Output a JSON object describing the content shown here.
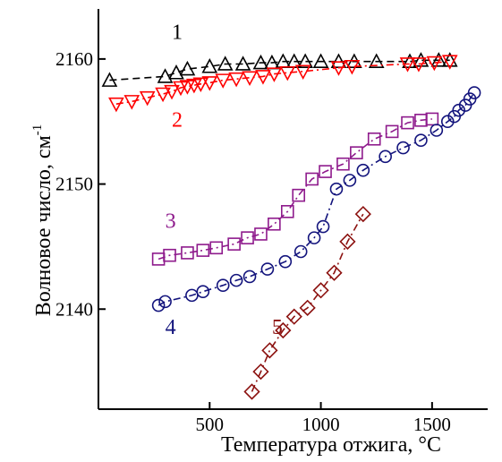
{
  "chart_data": {
    "type": "scatter",
    "xlabel": "Температура отжига, °C",
    "ylabel": "Волновое число, см",
    "ylabel_superscript": "-1",
    "xlim": [
      0,
      1750
    ],
    "ylim": [
      2132,
      2164
    ],
    "xticks": [
      500,
      1000,
      1500
    ],
    "yticks": [
      2140,
      2150,
      2160
    ],
    "grid": false,
    "series": [
      {
        "name": "1",
        "marker": "triangle-up",
        "color": "#000000",
        "linestyle": "dashed",
        "x": [
          50,
          300,
          350,
          400,
          500,
          570,
          650,
          730,
          780,
          830,
          880,
          930,
          1000,
          1080,
          1150,
          1250,
          1400,
          1450,
          1530,
          1580
        ],
        "y": [
          2158.3,
          2158.6,
          2158.9,
          2159.2,
          2159.4,
          2159.6,
          2159.6,
          2159.7,
          2159.7,
          2159.8,
          2159.8,
          2159.8,
          2159.8,
          2159.8,
          2159.8,
          2159.8,
          2159.8,
          2159.9,
          2159.9,
          2159.9
        ],
        "label_x": 330,
        "label_y": 2161.6
      },
      {
        "name": "2",
        "color": "#ff0000",
        "marker": "triangle-down",
        "linestyle": "dashdot",
        "x": [
          80,
          150,
          220,
          290,
          330,
          370,
          400,
          430,
          460,
          500,
          560,
          620,
          680,
          740,
          790,
          850,
          920,
          1080,
          1140,
          1390,
          1440,
          1510,
          1580
        ],
        "y": [
          2156.4,
          2156.6,
          2156.9,
          2157.2,
          2157.4,
          2157.7,
          2157.8,
          2157.9,
          2158.0,
          2158.1,
          2158.3,
          2158.4,
          2158.5,
          2158.6,
          2158.8,
          2158.9,
          2159.0,
          2159.3,
          2159.4,
          2159.6,
          2159.6,
          2159.7,
          2159.8
        ],
        "label_x": 330,
        "label_y": 2154.6
      },
      {
        "name": "3",
        "color": "#8e1a8c",
        "marker": "square",
        "linestyle": "dashdot",
        "x": [
          270,
          320,
          400,
          470,
          530,
          610,
          670,
          730,
          790,
          850,
          900,
          960,
          1020,
          1100,
          1160,
          1240,
          1320,
          1390,
          1450,
          1500
        ],
        "y": [
          2144.0,
          2144.3,
          2144.5,
          2144.7,
          2144.9,
          2145.2,
          2145.7,
          2146.0,
          2146.8,
          2147.8,
          2149.1,
          2150.4,
          2151.0,
          2151.6,
          2152.5,
          2153.6,
          2154.2,
          2154.9,
          2155.1,
          2155.2
        ],
        "label_x": 300,
        "label_y": 2146.5
      },
      {
        "name": "4",
        "color": "#12137c",
        "marker": "circle",
        "linestyle": "dashdot",
        "x": [
          270,
          300,
          420,
          470,
          560,
          620,
          680,
          760,
          840,
          910,
          970,
          1010,
          1070,
          1130,
          1190,
          1290,
          1370,
          1450,
          1520,
          1570,
          1600,
          1620,
          1650,
          1670,
          1690
        ],
        "y": [
          2140.3,
          2140.6,
          2141.1,
          2141.4,
          2141.9,
          2142.3,
          2142.6,
          2143.2,
          2143.8,
          2144.6,
          2145.7,
          2146.6,
          2149.6,
          2150.3,
          2151.1,
          2152.2,
          2152.9,
          2153.5,
          2154.3,
          2155.0,
          2155.4,
          2155.9,
          2156.3,
          2156.8,
          2157.3
        ],
        "label_x": 300,
        "label_y": 2138.0
      },
      {
        "name": "5",
        "color": "#8c1210",
        "marker": "diamond",
        "linestyle": "dashdot",
        "x": [
          690,
          730,
          770,
          830,
          880,
          940,
          1000,
          1060,
          1120,
          1190
        ],
        "y": [
          2133.4,
          2135.0,
          2136.7,
          2138.3,
          2139.4,
          2140.1,
          2141.5,
          2142.9,
          2145.4,
          2147.6
        ],
        "label_x": 780,
        "label_y": 2138.0
      }
    ]
  }
}
